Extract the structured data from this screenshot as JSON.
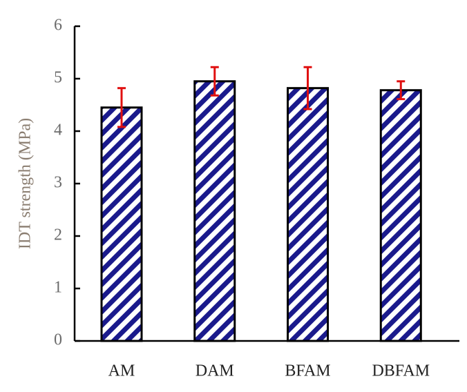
{
  "chart_data": {
    "type": "bar",
    "y_label": "IDT strength (MPa)",
    "categories": [
      "AM",
      "DAM",
      "BFAM",
      "DBFAM"
    ],
    "values": [
      4.45,
      4.95,
      4.82,
      4.78
    ],
    "errors": [
      0.37,
      0.27,
      0.4,
      0.17
    ],
    "color": "#1a1a8c",
    "error_color": "#e01010",
    "ylim": [
      0,
      6
    ],
    "yticks": [
      0,
      1,
      2,
      3,
      4,
      5,
      6
    ]
  }
}
